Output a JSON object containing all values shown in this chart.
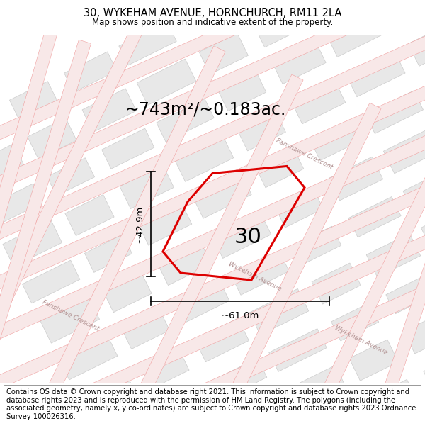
{
  "title": "30, WYKEHAM AVENUE, HORNCHURCH, RM11 2LA",
  "subtitle": "Map shows position and indicative extent of the property.",
  "area_text": "~743m²/~0.183ac.",
  "dim_width": "~61.0m",
  "dim_height": "~42.9m",
  "label": "30",
  "footer": "Contains OS data © Crown copyright and database right 2021. This information is subject to Crown copyright and database rights 2023 and is reproduced with the permission of HM Land Registry. The polygons (including the associated geometry, namely x, y co-ordinates) are subject to Crown copyright and database rights 2023 Ordnance Survey 100026316.",
  "map_bg": "#ffffff",
  "block_color": "#e8e8e8",
  "block_outline": "#cccccc",
  "road_line_color": "#f0a0a0",
  "road_fill_color": "#f8e8e8",
  "red_poly_color": "#dd0000",
  "title_fontsize": 10.5,
  "subtitle_fontsize": 8.5,
  "area_fontsize": 17,
  "label_fontsize": 22,
  "footer_fontsize": 7.2,
  "dim_fontsize": 9.5,
  "street_label_color": "#b09090",
  "street_label_fontsize": 6.5
}
